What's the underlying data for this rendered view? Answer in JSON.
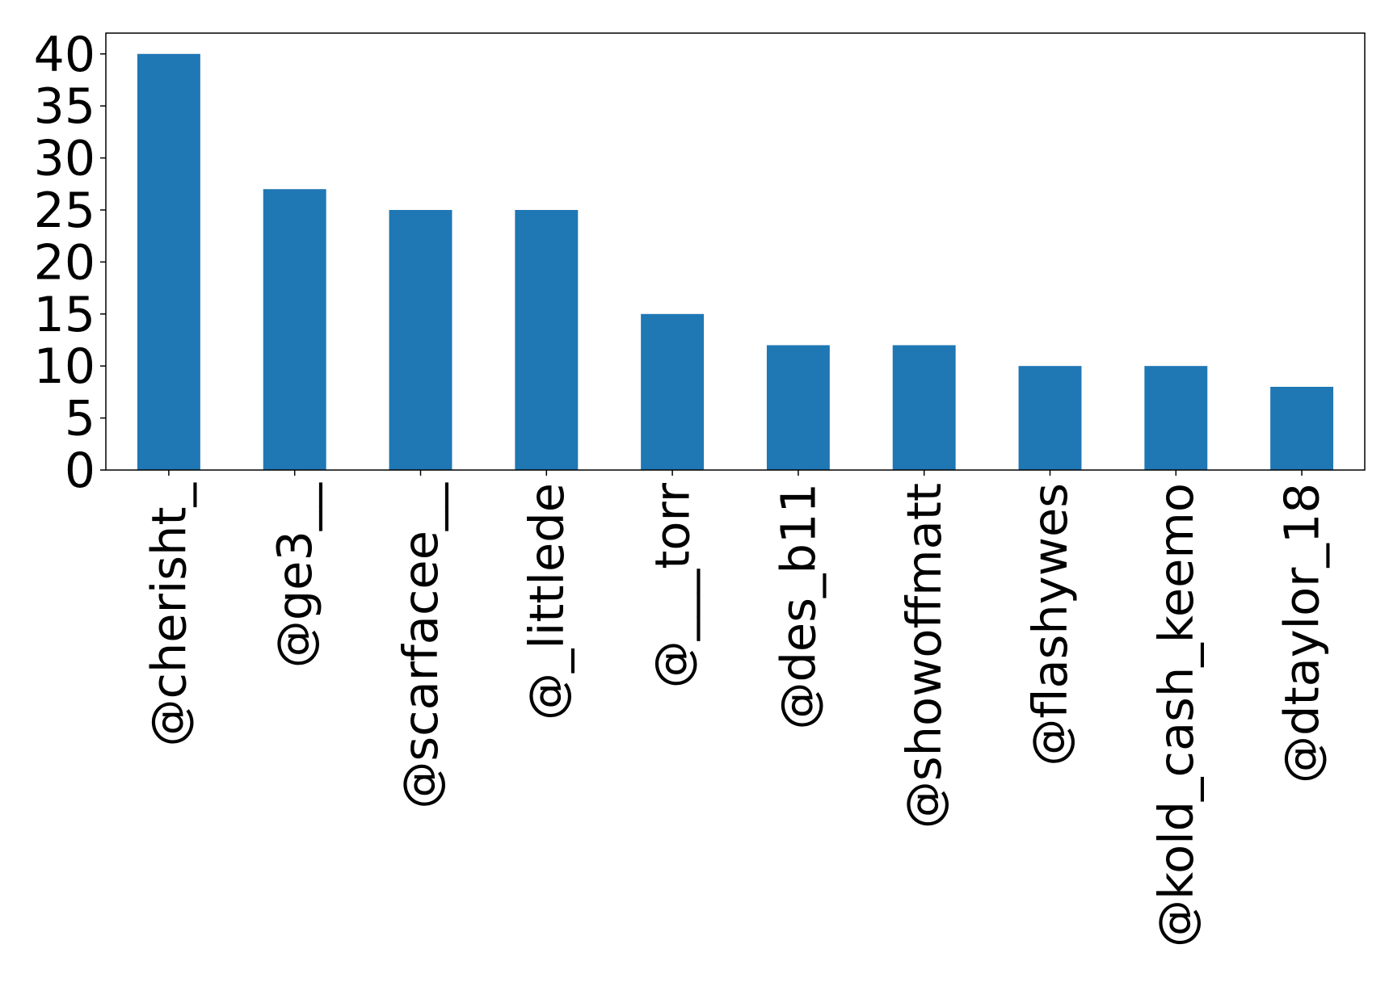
{
  "chart_data": {
    "type": "bar",
    "title": "",
    "xlabel": "",
    "ylabel": "",
    "categories": [
      "@cherisht_",
      "@ge3__",
      "@scarfacee__",
      "@_littlede",
      "@___torr",
      "@des_b11",
      "@showoffmatt",
      "@flashywes",
      "@kold_cash_keemo",
      "@dtaylor_18"
    ],
    "values": [
      40,
      27,
      25,
      25,
      15,
      12,
      12,
      10,
      10,
      8
    ],
    "ylim": [
      0,
      42
    ],
    "yticks": [
      0,
      5,
      10,
      15,
      20,
      25,
      30,
      35,
      40
    ],
    "grid": false,
    "legend": "none",
    "bar_color": "#1f77b4"
  }
}
